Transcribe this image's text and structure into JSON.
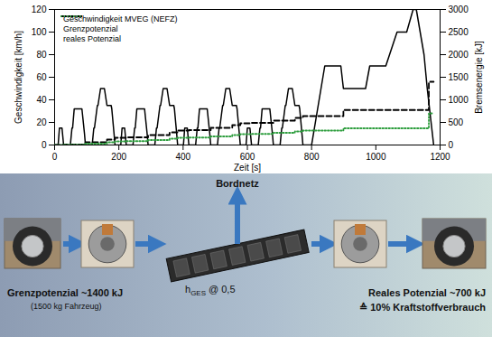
{
  "chart_data": {
    "type": "line",
    "x_label": "Zeit [s]",
    "y_label": "Geschwindigkeit [km/h]",
    "y2_label": "Bremsenergie [kJ]",
    "xlim": [
      0,
      1200
    ],
    "xticks": [
      0,
      200,
      400,
      600,
      800,
      1000,
      1200
    ],
    "ylim": [
      0,
      120
    ],
    "yticks": [
      0,
      20,
      40,
      60,
      80,
      100,
      120
    ],
    "y2lim": [
      0,
      3000
    ],
    "y2ticks": [
      0,
      500,
      1000,
      1500,
      2000,
      2500,
      3000
    ],
    "legend": "top-left",
    "series": [
      {
        "name": "Geschwindigkeit MVEG (NEFZ)",
        "color": "#000000",
        "line_style": "solid",
        "type": "line",
        "x": [
          0,
          11,
          15,
          23,
          28,
          49,
          54,
          56,
          61,
          85,
          93,
          96,
          117,
          122,
          124,
          133,
          135,
          143,
          155,
          163,
          176,
          178,
          185,
          188,
          195,
          206,
          210,
          218,
          223,
          244,
          249,
          251,
          256,
          280,
          288,
          291,
          312,
          317,
          319,
          328,
          330,
          338,
          350,
          358,
          371,
          373,
          380,
          383,
          390,
          401,
          405,
          413,
          418,
          439,
          444,
          446,
          451,
          475,
          483,
          486,
          507,
          512,
          514,
          523,
          525,
          533,
          545,
          553,
          566,
          568,
          575,
          578,
          585,
          596,
          600,
          608,
          613,
          634,
          639,
          641,
          646,
          670,
          678,
          681,
          702,
          707,
          709,
          718,
          720,
          728,
          740,
          748,
          761,
          763,
          770,
          773,
          780,
          800,
          841,
          891,
          899,
          968,
          981,
          1031,
          1066,
          1096,
          1116,
          1126,
          1150,
          1160,
          1180
        ],
        "values": [
          0,
          0,
          15,
          15,
          0,
          0,
          15,
          15,
          32,
          32,
          10,
          0,
          0,
          15,
          15,
          35,
          35,
          50,
          50,
          35,
          35,
          32,
          10,
          0,
          0,
          0,
          15,
          15,
          0,
          0,
          15,
          15,
          32,
          32,
          10,
          0,
          0,
          15,
          15,
          35,
          35,
          50,
          50,
          35,
          35,
          32,
          10,
          0,
          0,
          0,
          15,
          15,
          0,
          0,
          15,
          15,
          32,
          32,
          10,
          0,
          0,
          15,
          15,
          35,
          35,
          50,
          50,
          35,
          35,
          32,
          10,
          0,
          0,
          0,
          15,
          15,
          0,
          0,
          15,
          15,
          32,
          32,
          10,
          0,
          0,
          15,
          15,
          35,
          35,
          50,
          50,
          35,
          35,
          32,
          10,
          0,
          0,
          0,
          70,
          70,
          50,
          50,
          70,
          70,
          100,
          100,
          120,
          120,
          80,
          50,
          0
        ]
      },
      {
        "name": "Grenzpotenzial",
        "color": "#000000",
        "line_style": "dashed",
        "type": "step",
        "axis": "y2",
        "x": [
          0,
          28,
          96,
          163,
          188,
          223,
          291,
          358,
          383,
          418,
          486,
          553,
          578,
          613,
          681,
          748,
          773,
          899,
          1165,
          1180
        ],
        "values": [
          0,
          10,
          60,
          120,
          160,
          170,
          220,
          280,
          320,
          330,
          380,
          440,
          480,
          490,
          540,
          600,
          640,
          775,
          1400,
          1400
        ]
      },
      {
        "name": "reales Potenzial",
        "color": "#2e9e3e",
        "line_style": "dotted",
        "type": "step",
        "axis": "y2",
        "x": [
          0,
          28,
          96,
          163,
          188,
          223,
          291,
          358,
          383,
          418,
          486,
          553,
          578,
          613,
          681,
          748,
          773,
          899,
          1165,
          1180
        ],
        "values": [
          0,
          5,
          30,
          60,
          80,
          85,
          110,
          140,
          160,
          165,
          190,
          220,
          240,
          245,
          270,
          300,
          320,
          370,
          700,
          700
        ]
      }
    ]
  },
  "diagram": {
    "top_label": "Bordnetz",
    "left": {
      "title": "Grenzpotenzial ~1400 kJ",
      "note": "(1500 kg Fahrzeug)"
    },
    "center": {
      "symbol": "h",
      "subscript": "GES",
      "value": "@ 0,5"
    },
    "right": {
      "title": "Reales Potenzial ~700 kJ",
      "note": "≙ 10% Kraftstoffverbrauch"
    }
  }
}
